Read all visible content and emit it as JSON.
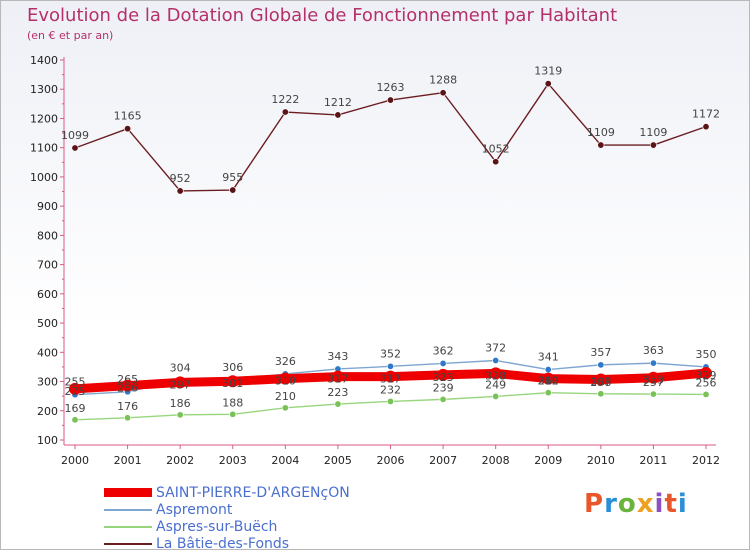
{
  "header": {
    "title": "Evolution de la Dotation Globale de Fonctionnement par Habitant",
    "subtitle": "(en € et par an)"
  },
  "brand": {
    "text": "Proxiti",
    "colors": [
      "#e8562a",
      "#2a8fd8",
      "#6cb33e",
      "#f0a020",
      "#8a4fc0",
      "#e8562a",
      "#2a8fd8"
    ]
  },
  "chart_data": {
    "type": "line",
    "title": "Evolution de la Dotation Globale de Fonctionnement par Habitant",
    "subtitle": "(en € et par an)",
    "xlabel": "",
    "ylabel": "",
    "categories": [
      "2000",
      "2001",
      "2002",
      "2003",
      "2004",
      "2005",
      "2006",
      "2007",
      "2008",
      "2009",
      "2010",
      "2011",
      "2012"
    ],
    "yticks": [
      100,
      200,
      300,
      400,
      500,
      600,
      700,
      800,
      900,
      1000,
      1100,
      1200,
      1300,
      1400
    ],
    "ylim": [
      100,
      1400
    ],
    "grid": false,
    "legend_position": "bottom-left",
    "series": [
      {
        "name": "SAINT-PIERRE-D'ARGENçON",
        "color": "#ee0000",
        "marker": "#ee0000",
        "values": [
          275,
          286,
          297,
          301,
          310,
          317,
          317,
          323,
          328,
          310,
          307,
          313,
          329
        ]
      },
      {
        "name": "Aspremont",
        "color": "#7ea6d0",
        "marker": "#2f79c8",
        "values": [
          255,
          265,
          304,
          306,
          326,
          343,
          352,
          362,
          372,
          341,
          357,
          363,
          350
        ]
      },
      {
        "name": "Aspres-sur-Buëch",
        "color": "#98d67e",
        "marker": "#78c258",
        "values": [
          169,
          176,
          186,
          188,
          210,
          223,
          232,
          239,
          249,
          262,
          258,
          257,
          256
        ]
      },
      {
        "name": "La Bâtie-des-Fonds",
        "color": "#6b1e22",
        "marker": "#5a1418",
        "values": [
          1099,
          1165,
          952,
          955,
          1222,
          1212,
          1263,
          1288,
          1052,
          1319,
          1109,
          1109,
          1172
        ]
      }
    ]
  }
}
